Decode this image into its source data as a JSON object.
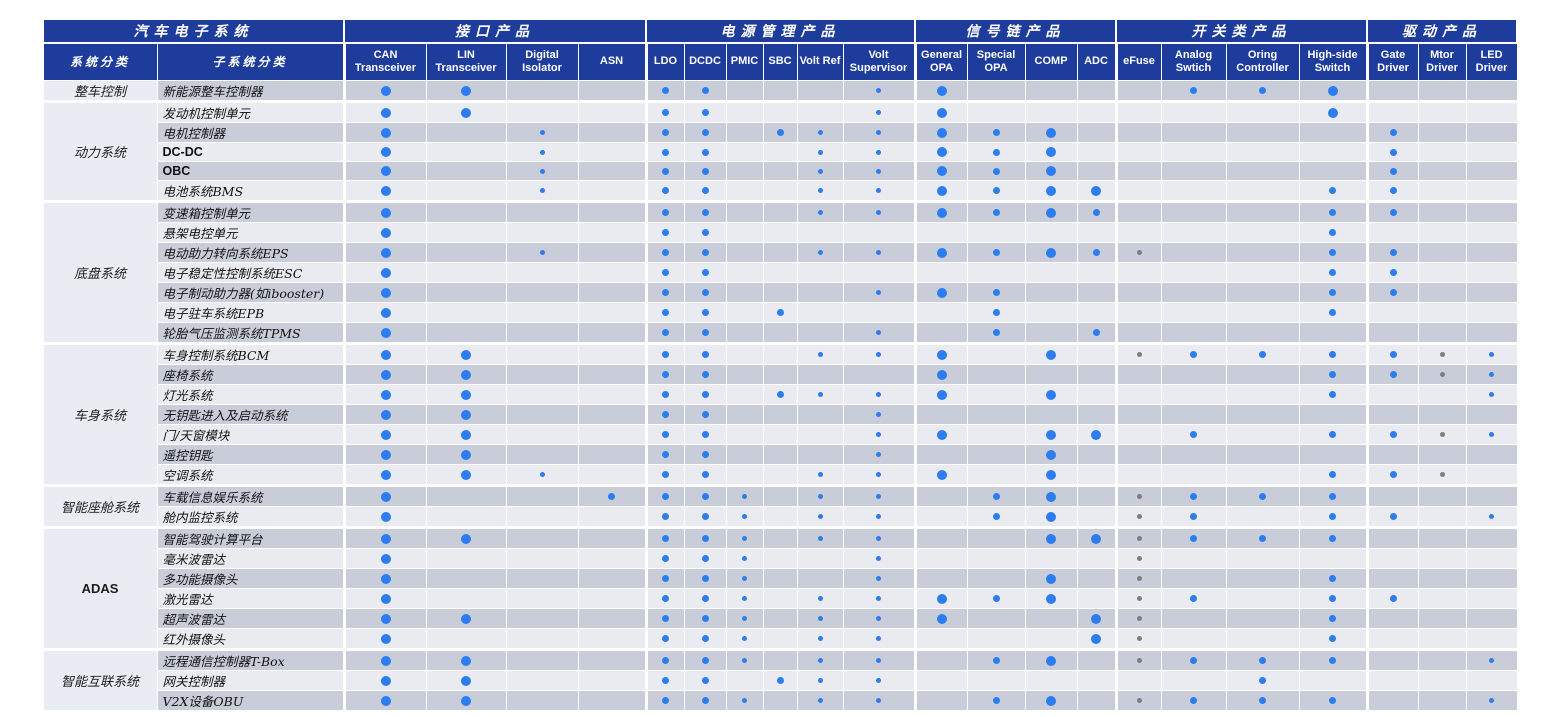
{
  "colors": {
    "header_bg": "#1e3c9b",
    "row_dark": "#c9cdd9",
    "row_light": "#e9ebf1",
    "group_cell_bg": "#eaecf3",
    "dot_blue": "#2b7df0",
    "dot_gray": "#7e7e7e"
  },
  "dot_legend": {
    "L": "large blue dot",
    "M": "medium blue dot",
    "S": "small blue dot",
    "g": "small gray dot"
  },
  "banner": [
    {
      "label": "汽车电子系统",
      "span": 2
    },
    {
      "label": "接口产品",
      "span": 4
    },
    {
      "label": "电源管理产品",
      "span": 6
    },
    {
      "label": "信号链产品",
      "span": 4
    },
    {
      "label": "开关类产品",
      "span": 4
    },
    {
      "label": "驱动产品",
      "span": 3
    }
  ],
  "columns": [
    {
      "key": "group",
      "label": "系统分类",
      "width": 114
    },
    {
      "key": "sub",
      "label": "子系统分类",
      "width": 187
    },
    {
      "key": "can",
      "label": "CAN Transceiver",
      "width": 82,
      "gs": true
    },
    {
      "key": "lin",
      "label": "LIN Transceiver",
      "width": 80
    },
    {
      "key": "dig",
      "label": "Digital Isolator",
      "width": 72
    },
    {
      "key": "asn",
      "label": "ASN",
      "width": 68
    },
    {
      "key": "ldo",
      "label": "LDO",
      "width": 38,
      "gs": true
    },
    {
      "key": "dcdc",
      "label": "DCDC",
      "width": 42
    },
    {
      "key": "pmic",
      "label": "PMIC",
      "width": 37
    },
    {
      "key": "sbc",
      "label": "SBC",
      "width": 34
    },
    {
      "key": "vref",
      "label": "Volt Ref",
      "width": 46
    },
    {
      "key": "vsup",
      "label": "Volt Supervisor",
      "width": 72
    },
    {
      "key": "gopa",
      "label": "General OPA",
      "width": 52,
      "gs": true
    },
    {
      "key": "sopa",
      "label": "Special OPA",
      "width": 58
    },
    {
      "key": "comp",
      "label": "COMP",
      "width": 52
    },
    {
      "key": "adc",
      "label": "ADC",
      "width": 39
    },
    {
      "key": "efuse",
      "label": "eFuse",
      "width": 45,
      "gs": true
    },
    {
      "key": "asw",
      "label": "Analog Swtich",
      "width": 65
    },
    {
      "key": "oring",
      "label": "Oring Controller",
      "width": 73
    },
    {
      "key": "hss",
      "label": "High-side Switch",
      "width": 68
    },
    {
      "key": "gate",
      "label": "Gate Driver",
      "width": 51,
      "gs": true
    },
    {
      "key": "mtor",
      "label": "Mtor Driver",
      "width": 48
    },
    {
      "key": "led",
      "label": "LED Driver",
      "width": 51
    }
  ],
  "groups": [
    {
      "name": "整车控制",
      "rows": [
        {
          "label": "新能源整车控制器",
          "dots": {
            "can": "L",
            "lin": "L",
            "ldo": "M",
            "dcdc": "M",
            "vsup": "S",
            "gopa": "L",
            "asw": "M",
            "oring": "M",
            "hss": "L"
          }
        }
      ]
    },
    {
      "name": "动力系统",
      "rows": [
        {
          "label": "发动机控制单元",
          "dots": {
            "can": "L",
            "lin": "L",
            "ldo": "M",
            "dcdc": "M",
            "vsup": "S",
            "gopa": "L",
            "hss": "L"
          }
        },
        {
          "label": "电机控制器",
          "dots": {
            "can": "L",
            "dig": "S",
            "ldo": "M",
            "dcdc": "M",
            "sbc": "M",
            "vref": "S",
            "vsup": "S",
            "gopa": "L",
            "sopa": "M",
            "comp": "L",
            "gate": "M"
          }
        },
        {
          "label": "DC-DC",
          "dots": {
            "can": "L",
            "dig": "S",
            "ldo": "M",
            "dcdc": "M",
            "vref": "S",
            "vsup": "S",
            "gopa": "L",
            "sopa": "M",
            "comp": "L",
            "gate": "M"
          }
        },
        {
          "label": "OBC",
          "dots": {
            "can": "L",
            "dig": "S",
            "ldo": "M",
            "dcdc": "M",
            "vref": "S",
            "vsup": "S",
            "gopa": "L",
            "sopa": "M",
            "comp": "L",
            "gate": "M"
          }
        },
        {
          "label": "电池系统BMS",
          "dots": {
            "can": "L",
            "dig": "S",
            "ldo": "M",
            "dcdc": "M",
            "vref": "S",
            "vsup": "S",
            "gopa": "L",
            "sopa": "M",
            "comp": "L",
            "adc": "L",
            "hss": "M",
            "gate": "M"
          }
        }
      ]
    },
    {
      "name": "底盘系统",
      "rows": [
        {
          "label": "变速箱控制单元",
          "dots": {
            "can": "L",
            "ldo": "M",
            "dcdc": "M",
            "vref": "S",
            "vsup": "S",
            "gopa": "L",
            "sopa": "M",
            "comp": "L",
            "adc": "M",
            "hss": "M",
            "gate": "M"
          }
        },
        {
          "label": "悬架电控单元",
          "dots": {
            "can": "L",
            "ldo": "M",
            "dcdc": "M",
            "hss": "M"
          }
        },
        {
          "label": "电动助力转向系统EPS",
          "dots": {
            "can": "L",
            "dig": "S",
            "ldo": "M",
            "dcdc": "M",
            "vref": "S",
            "vsup": "S",
            "gopa": "L",
            "sopa": "M",
            "comp": "L",
            "adc": "M",
            "efuse": "g",
            "hss": "M",
            "gate": "M"
          }
        },
        {
          "label": "电子稳定性控制系统ESC",
          "dots": {
            "can": "L",
            "ldo": "M",
            "dcdc": "M",
            "hss": "M",
            "gate": "M"
          }
        },
        {
          "label": "电子制动助力器(如ibooster)",
          "dots": {
            "can": "L",
            "ldo": "M",
            "dcdc": "M",
            "vsup": "S",
            "gopa": "L",
            "sopa": "M",
            "hss": "M",
            "gate": "M"
          }
        },
        {
          "label": "电子驻车系统EPB",
          "dots": {
            "can": "L",
            "ldo": "M",
            "dcdc": "M",
            "sbc": "M",
            "sopa": "M",
            "hss": "M"
          }
        },
        {
          "label": "轮胎气压监测系统TPMS",
          "dots": {
            "can": "L",
            "ldo": "M",
            "dcdc": "M",
            "vsup": "S",
            "sopa": "M",
            "adc": "M"
          }
        }
      ]
    },
    {
      "name": "车身系统",
      "rows": [
        {
          "label": "车身控制系统BCM",
          "dots": {
            "can": "L",
            "lin": "L",
            "ldo": "M",
            "dcdc": "M",
            "vref": "S",
            "vsup": "S",
            "gopa": "L",
            "comp": "L",
            "efuse": "g",
            "asw": "M",
            "oring": "M",
            "hss": "M",
            "gate": "M",
            "mtor": "g",
            "led": "S"
          }
        },
        {
          "label": "座椅系统",
          "dots": {
            "can": "L",
            "lin": "L",
            "ldo": "M",
            "dcdc": "M",
            "gopa": "L",
            "hss": "M",
            "gate": "M",
            "mtor": "g",
            "led": "S"
          }
        },
        {
          "label": "灯光系统",
          "dots": {
            "can": "L",
            "lin": "L",
            "ldo": "M",
            "dcdc": "M",
            "sbc": "M",
            "vref": "S",
            "vsup": "S",
            "gopa": "L",
            "comp": "L",
            "hss": "M",
            "led": "S"
          }
        },
        {
          "label": "无钥匙进入及启动系统",
          "dots": {
            "can": "L",
            "lin": "L",
            "ldo": "M",
            "dcdc": "M",
            "vsup": "S"
          }
        },
        {
          "label": "门/天窗模块",
          "dots": {
            "can": "L",
            "lin": "L",
            "ldo": "M",
            "dcdc": "M",
            "vsup": "S",
            "gopa": "L",
            "comp": "L",
            "adc": "L",
            "asw": "M",
            "hss": "M",
            "gate": "M",
            "mtor": "g",
            "led": "S"
          }
        },
        {
          "label": "遥控钥匙",
          "dots": {
            "can": "L",
            "lin": "L",
            "ldo": "M",
            "dcdc": "M",
            "vsup": "S",
            "comp": "L"
          }
        },
        {
          "label": "空调系统",
          "dots": {
            "can": "L",
            "lin": "L",
            "dig": "S",
            "ldo": "M",
            "dcdc": "M",
            "vref": "S",
            "vsup": "S",
            "gopa": "L",
            "comp": "L",
            "hss": "M",
            "gate": "M",
            "mtor": "g"
          }
        }
      ]
    },
    {
      "name": "智能座舱系统",
      "rows": [
        {
          "label": "车载信息娱乐系统",
          "dots": {
            "can": "L",
            "asn": "M",
            "ldo": "M",
            "dcdc": "M",
            "pmic": "S",
            "vref": "S",
            "vsup": "S",
            "sopa": "M",
            "comp": "L",
            "efuse": "g",
            "asw": "M",
            "oring": "M",
            "hss": "M"
          }
        },
        {
          "label": "舱内监控系统",
          "dots": {
            "can": "L",
            "ldo": "M",
            "dcdc": "M",
            "pmic": "S",
            "vref": "S",
            "vsup": "S",
            "sopa": "M",
            "comp": "L",
            "efuse": "g",
            "asw": "M",
            "hss": "M",
            "gate": "M",
            "led": "S"
          }
        }
      ]
    },
    {
      "name": "ADAS",
      "rows": [
        {
          "label": "智能驾驶计算平台",
          "dots": {
            "can": "L",
            "lin": "L",
            "ldo": "M",
            "dcdc": "M",
            "pmic": "S",
            "vref": "S",
            "vsup": "S",
            "comp": "L",
            "adc": "L",
            "efuse": "g",
            "asw": "M",
            "oring": "M",
            "hss": "M"
          }
        },
        {
          "label": "毫米波雷达",
          "dots": {
            "can": "L",
            "ldo": "M",
            "dcdc": "M",
            "pmic": "S",
            "vsup": "S",
            "efuse": "g"
          }
        },
        {
          "label": "多功能摄像头",
          "dots": {
            "can": "L",
            "ldo": "M",
            "dcdc": "M",
            "pmic": "S",
            "vsup": "S",
            "comp": "L",
            "efuse": "g",
            "hss": "M"
          }
        },
        {
          "label": "激光雷达",
          "dots": {
            "can": "L",
            "ldo": "M",
            "dcdc": "M",
            "pmic": "S",
            "vref": "S",
            "vsup": "S",
            "gopa": "L",
            "sopa": "M",
            "comp": "L",
            "efuse": "g",
            "asw": "M",
            "hss": "M",
            "gate": "M"
          }
        },
        {
          "label": "超声波雷达",
          "dots": {
            "can": "L",
            "lin": "L",
            "ldo": "M",
            "dcdc": "M",
            "pmic": "S",
            "vref": "S",
            "vsup": "S",
            "gopa": "L",
            "adc": "L",
            "efuse": "g",
            "hss": "M"
          }
        },
        {
          "label": "红外摄像头",
          "dots": {
            "can": "L",
            "ldo": "M",
            "dcdc": "M",
            "pmic": "S",
            "vref": "S",
            "vsup": "S",
            "adc": "L",
            "efuse": "g",
            "hss": "M"
          }
        }
      ]
    },
    {
      "name": "智能互联系统",
      "rows": [
        {
          "label": "远程通信控制器T-Box",
          "dots": {
            "can": "L",
            "lin": "L",
            "ldo": "M",
            "dcdc": "M",
            "pmic": "S",
            "vref": "S",
            "vsup": "S",
            "sopa": "M",
            "comp": "L",
            "efuse": "g",
            "asw": "M",
            "oring": "M",
            "hss": "M",
            "led": "S"
          }
        },
        {
          "label": "网关控制器",
          "dots": {
            "can": "L",
            "lin": "L",
            "ldo": "M",
            "dcdc": "M",
            "sbc": "M",
            "vref": "S",
            "vsup": "S",
            "oring": "M"
          }
        },
        {
          "label": "V2X设备OBU",
          "dots": {
            "can": "L",
            "lin": "L",
            "ldo": "M",
            "dcdc": "M",
            "pmic": "S",
            "vref": "S",
            "vsup": "S",
            "sopa": "M",
            "comp": "L",
            "efuse": "g",
            "asw": "M",
            "oring": "M",
            "hss": "M",
            "led": "S"
          }
        }
      ]
    }
  ]
}
